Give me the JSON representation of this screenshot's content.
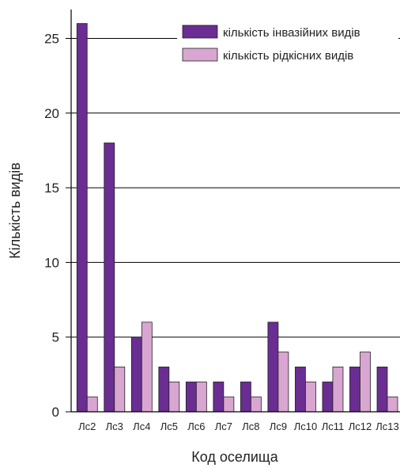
{
  "chart_data": {
    "type": "bar",
    "categories": [
      "Лс2",
      "Лс3",
      "Лс4",
      "Лс5",
      "Лс6",
      "Лс7",
      "Лс8",
      "Лс9",
      "Лс10",
      "Лс11",
      "Лс12",
      "Лс13"
    ],
    "series": [
      {
        "name": "кількість інвазійних видів",
        "values": [
          26,
          18,
          5,
          3,
          2,
          2,
          2,
          6,
          3,
          2,
          3,
          3
        ],
        "color": "#6a2d91"
      },
      {
        "name": "кількість рідкісних видів",
        "values": [
          1,
          3,
          6,
          2,
          2,
          1,
          1,
          4,
          2,
          3,
          4,
          1
        ],
        "color": "#d8a6d0"
      }
    ],
    "xlabel": "Код оселища",
    "ylabel": "Кількість видів",
    "ylim": [
      0,
      26
    ],
    "yticks": [
      0,
      5,
      10,
      15,
      20,
      25
    ],
    "grid": "horizontal",
    "legend_position": "top-right"
  }
}
